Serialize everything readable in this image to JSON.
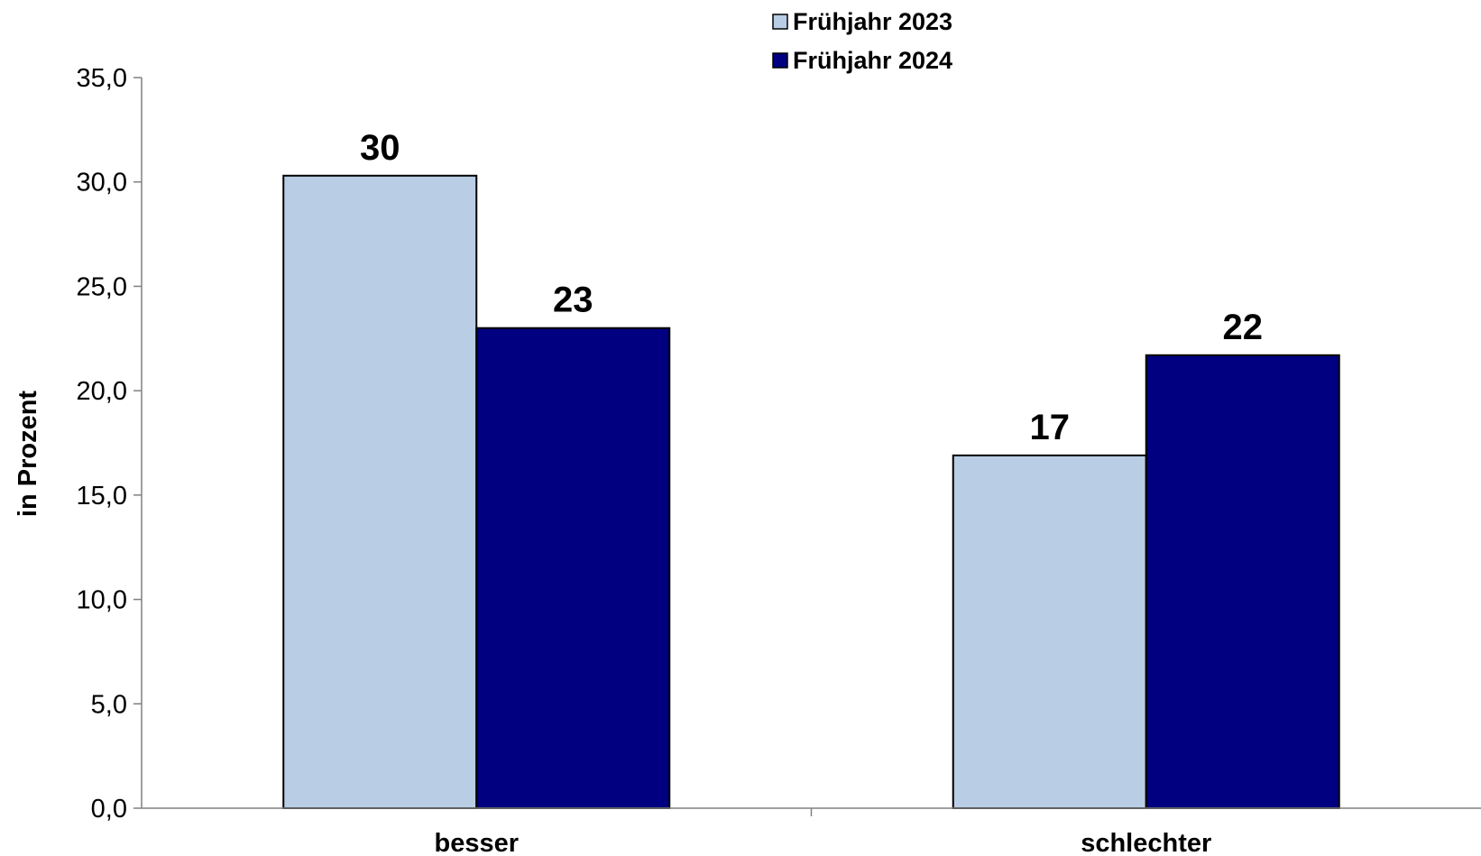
{
  "chart_data": {
    "type": "bar",
    "title": "",
    "xlabel": "",
    "ylabel": "in Prozent",
    "categories": [
      "besser",
      "schlechter"
    ],
    "series": [
      {
        "name": "Frühjahr 2023",
        "values": [
          30.3,
          16.9
        ],
        "labels": [
          "30",
          "17"
        ],
        "color": "#b9cde5"
      },
      {
        "name": "Frühjahr 2024",
        "values": [
          23.0,
          21.7
        ],
        "labels": [
          "23",
          "22"
        ],
        "color": "#000080"
      }
    ],
    "ylim": [
      0,
      35
    ],
    "yticks": [
      0,
      5,
      10,
      15,
      20,
      25,
      30,
      35
    ],
    "ytick_labels": [
      "0,0",
      "5,0",
      "10,0",
      "15,0",
      "20,0",
      "25,0",
      "30,0",
      "35,0"
    ],
    "grid": false,
    "legend_position": "top-center",
    "bar_border_color": "#000000",
    "axis_color": "#808080"
  }
}
